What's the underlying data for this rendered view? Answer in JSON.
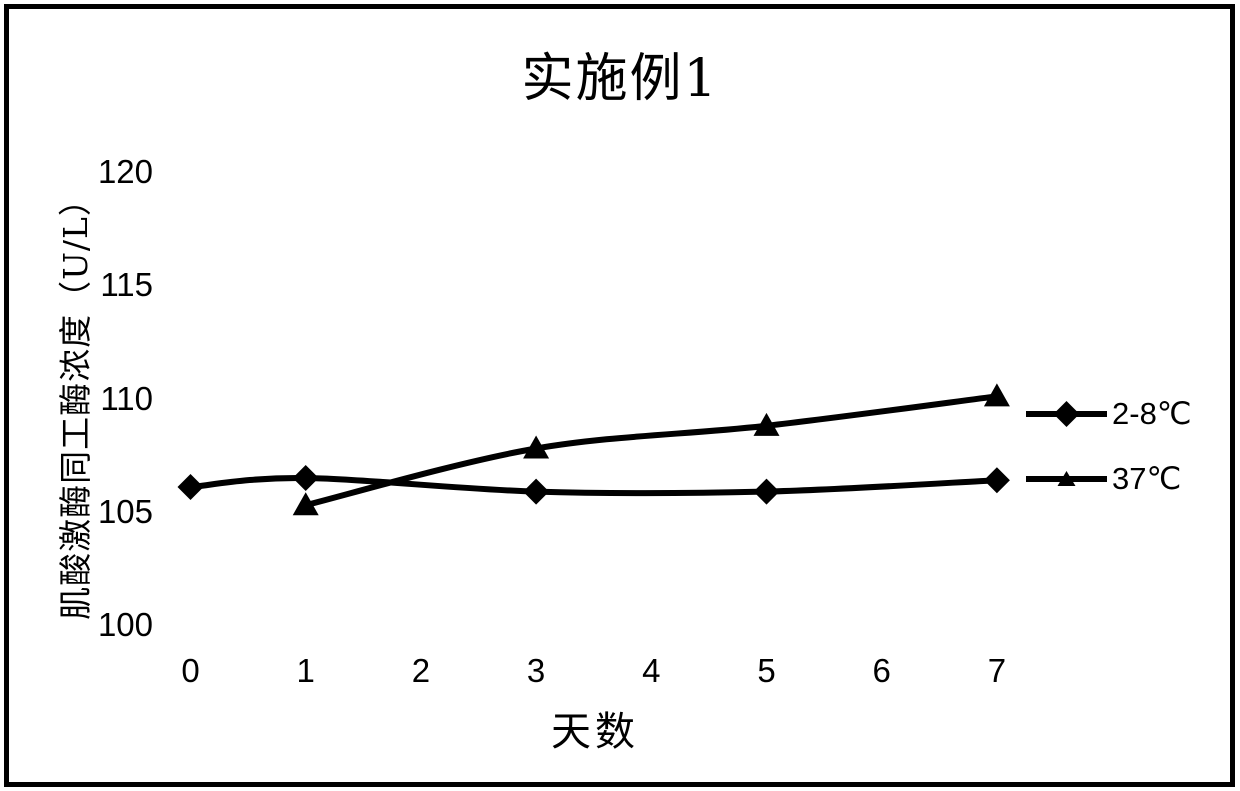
{
  "chart_data": {
    "type": "line",
    "title": "实施例1",
    "xlabel": "天数",
    "ylabel": "肌酸激酶同工酶浓度（U/L）",
    "x_ticks": [
      "0",
      "1",
      "2",
      "3",
      "4",
      "5",
      "6",
      "7"
    ],
    "y_ticks": [
      "100",
      "105",
      "110",
      "115",
      "120"
    ],
    "xlim": [
      0,
      7.6
    ],
    "ylim": [
      100,
      120
    ],
    "grid": false,
    "axes_lines": false,
    "legend_position": "right-middle",
    "line_color": "#000000",
    "background_color": "#ffffff",
    "series": [
      {
        "name": "2-8℃",
        "marker": "diamond",
        "x": [
          0,
          1,
          3,
          5,
          7
        ],
        "y": [
          106.1,
          106.5,
          105.9,
          105.9,
          106.4
        ]
      },
      {
        "name": "37℃",
        "marker": "triangle",
        "x": [
          1,
          3,
          5,
          7
        ],
        "y": [
          105.3,
          107.8,
          108.8,
          110.1
        ]
      }
    ]
  }
}
